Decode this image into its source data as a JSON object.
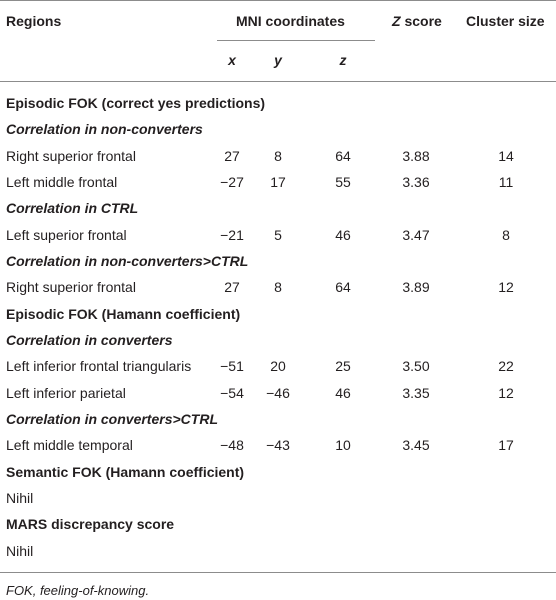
{
  "header": {
    "regions": "Regions",
    "mni": "MNI coordinates",
    "zscore_z": "Z",
    "zscore_rest": " score",
    "cluster": "Cluster size",
    "x": "x",
    "y": "y",
    "z": "z"
  },
  "rows": [
    {
      "kind": "section",
      "label": "Episodic FOK (correct yes predictions)"
    },
    {
      "kind": "subsection",
      "label": "Correlation in non-converters"
    },
    {
      "kind": "data",
      "region": "Right superior frontal",
      "x": "27",
      "y": "8",
      "z": "64",
      "zscore": "3.88",
      "cluster": "14"
    },
    {
      "kind": "data",
      "region": "Left middle frontal",
      "x": "−27",
      "y": "17",
      "z": "55",
      "zscore": "3.36",
      "cluster": "11"
    },
    {
      "kind": "subsection",
      "label": "Correlation in CTRL"
    },
    {
      "kind": "data",
      "region": "Left superior frontal",
      "x": "−21",
      "y": "5",
      "z": "46",
      "zscore": "3.47",
      "cluster": "8"
    },
    {
      "kind": "subsection",
      "label": "Correlation in non-converters>CTRL"
    },
    {
      "kind": "data",
      "region": "Right superior frontal",
      "x": "27",
      "y": "8",
      "z": "64",
      "zscore": "3.89",
      "cluster": "12"
    },
    {
      "kind": "section",
      "label": "Episodic FOK (Hamann coefficient)"
    },
    {
      "kind": "subsection",
      "label": "Correlation in converters"
    },
    {
      "kind": "data",
      "region": "Left inferior frontal triangularis",
      "x": "−51",
      "y": "20",
      "z": "25",
      "zscore": "3.50",
      "cluster": "22"
    },
    {
      "kind": "data",
      "region": "Left inferior parietal",
      "x": "−54",
      "y": "−46",
      "z": "46",
      "zscore": "3.35",
      "cluster": "12"
    },
    {
      "kind": "subsection",
      "label": "Correlation in converters>CTRL"
    },
    {
      "kind": "data",
      "region": "Left middle temporal",
      "x": "−48",
      "y": "−43",
      "z": "10",
      "zscore": "3.45",
      "cluster": "17"
    },
    {
      "kind": "section",
      "label": "Semantic FOK (Hamann coefficient)"
    },
    {
      "kind": "plain",
      "label": "Nihil"
    },
    {
      "kind": "section",
      "label": "MARS discrepancy score"
    },
    {
      "kind": "plain",
      "label": "Nihil"
    }
  ],
  "footnote": "FOK, feeling-of-knowing."
}
